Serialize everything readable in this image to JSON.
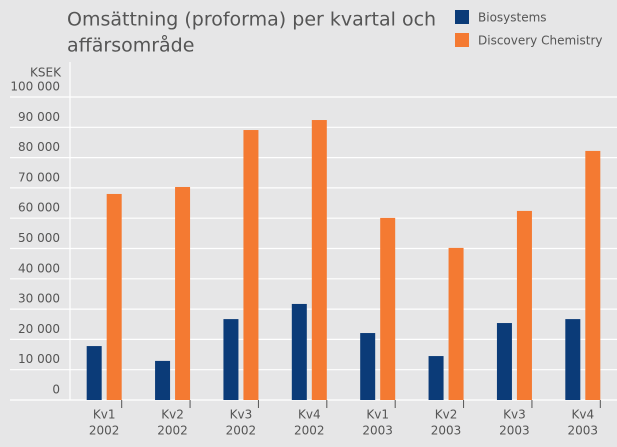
{
  "chart_data": {
    "type": "bar",
    "title": [
      "Omsättning (proforma) per kvartal och",
      "affärsområde"
    ],
    "y_label": "KSEK",
    "categories": [
      [
        "Kv1",
        "2002"
      ],
      [
        "Kv2",
        "2002"
      ],
      [
        "Kv3",
        "2002"
      ],
      [
        "Kv4",
        "2002"
      ],
      [
        "Kv1",
        "2003"
      ],
      [
        "Kv2",
        "2003"
      ],
      [
        "Kv3",
        "2003"
      ],
      [
        "Kv4",
        "2003"
      ]
    ],
    "series": [
      {
        "name": "Biosystems",
        "color": "#0b3b78",
        "values": [
          17800,
          12900,
          26700,
          31700,
          22100,
          14500,
          25400,
          26700
        ]
      },
      {
        "name": "Discovery Chemistry",
        "color": "#f47a32",
        "values": [
          68000,
          70300,
          89100,
          92400,
          60100,
          50200,
          62400,
          82200
        ]
      }
    ],
    "ylim": [
      0,
      100000
    ],
    "yticks": [
      0,
      {
        "value": 10000,
        "label": "10 000"
      },
      {
        "value": 20000,
        "label": "20 000"
      },
      {
        "value": 30000,
        "label": "30 000"
      },
      {
        "value": 40000,
        "label": "40 000"
      },
      {
        "value": 50000,
        "label": "50 000"
      },
      {
        "value": 60000,
        "label": "60 000"
      },
      {
        "value": 70000,
        "label": "70 000"
      },
      {
        "value": 80000,
        "label": "80 000"
      },
      {
        "value": 90000,
        "label": "90 000"
      },
      {
        "value": 100000,
        "label": "100 000"
      }
    ],
    "grid": true
  }
}
